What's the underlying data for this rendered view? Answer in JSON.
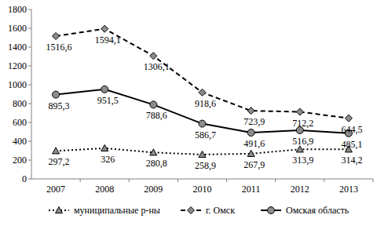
{
  "chart_data": {
    "type": "line",
    "categories": [
      "2007",
      "2008",
      "2009",
      "2010",
      "2011",
      "2012",
      "2013"
    ],
    "series": [
      {
        "name": "муниципальные р-ны",
        "color": "#000000",
        "marker": "triangle",
        "line_style": "dotted",
        "values": [
          297.2,
          326,
          280.8,
          258.9,
          267.9,
          313.9,
          314.2
        ],
        "value_labels": [
          "297,2",
          "326",
          "280,8",
          "258,9",
          "267,9",
          "313,9",
          "314,2"
        ]
      },
      {
        "name": "г. Омск",
        "color": "#000000",
        "marker": "diamond",
        "line_style": "dashed",
        "values": [
          1516.6,
          1594.1,
          1306.1,
          918.6,
          723.9,
          712.2,
          644.5
        ],
        "value_labels": [
          "1516,6",
          "1594,1",
          "1306,1",
          "918,6",
          "723,9",
          "712,2",
          "644,5"
        ]
      },
      {
        "name": "Омская область",
        "color": "#000000",
        "marker": "circle",
        "line_style": "solid",
        "values": [
          895.3,
          951.5,
          788.6,
          586.7,
          491.6,
          516.9,
          485.1
        ],
        "value_labels": [
          "895,3",
          "951,5",
          "788,6",
          "586,7",
          "491,6",
          "516,9",
          "485,1"
        ]
      }
    ],
    "ylim": [
      0,
      1800
    ],
    "yticks": [
      0,
      200,
      400,
      600,
      800,
      1000,
      1200,
      1400,
      1600,
      1800
    ],
    "grid": false,
    "legend": "bottom",
    "data_labels": true
  }
}
